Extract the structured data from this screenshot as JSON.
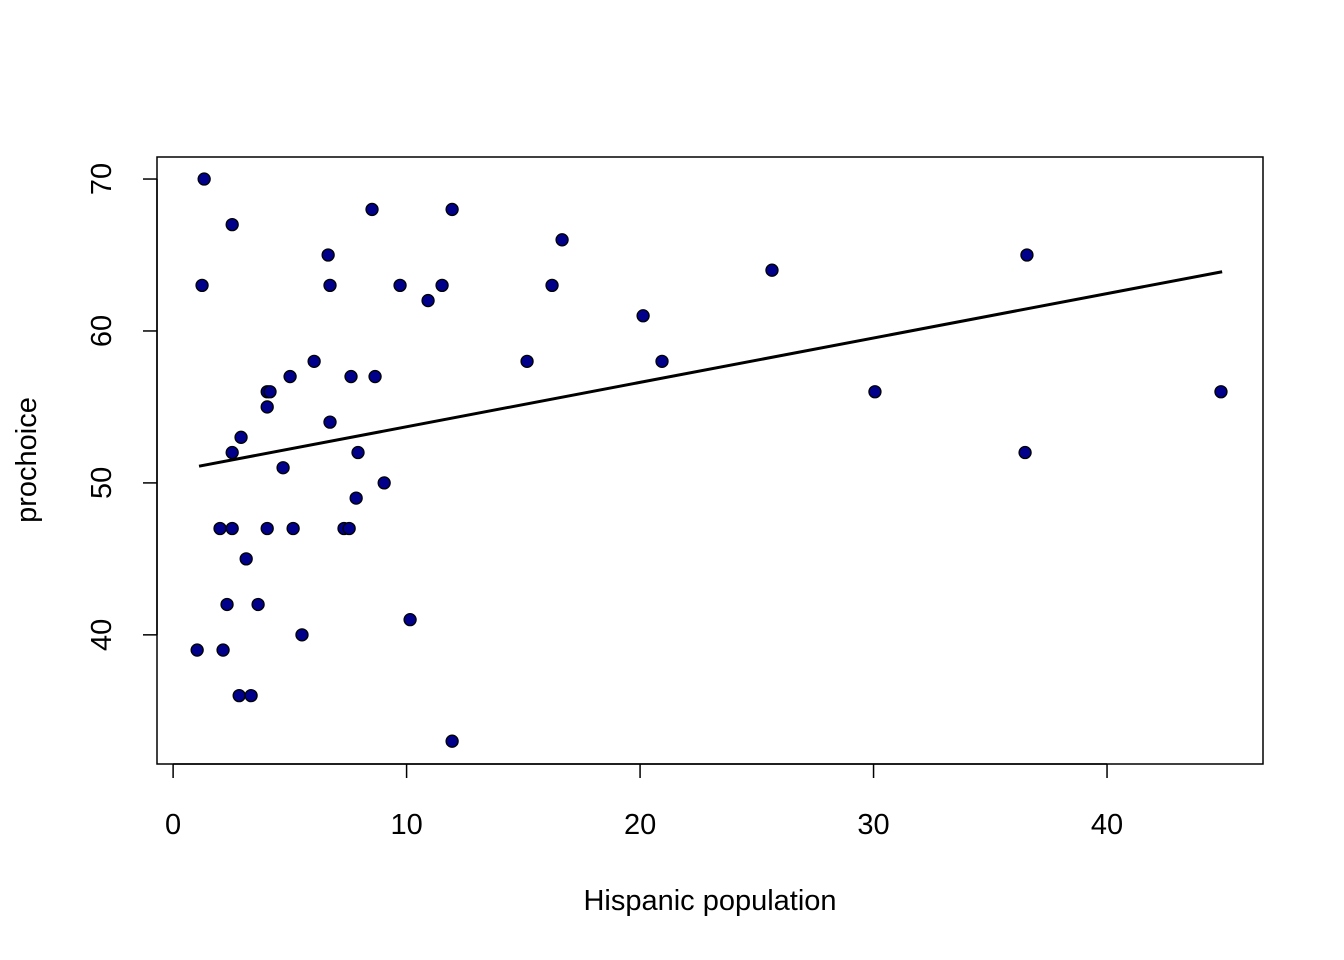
{
  "chart_data": {
    "type": "scatter",
    "title": "",
    "xlabel": "Hispanic population",
    "ylabel": "prochoice",
    "xlim": [
      -0.69,
      46.68
    ],
    "ylim": [
      31.5,
      71.45
    ],
    "xticks": [
      0,
      10,
      20,
      30,
      40
    ],
    "yticks": [
      40,
      50,
      60,
      70
    ],
    "grid": false,
    "point_color": "#00008B",
    "point_edge": "#000000",
    "x": [
      1.33,
      1.24,
      2.53,
      6.64,
      6.72,
      8.52,
      11.95,
      9.72,
      11.52,
      10.92,
      16.66,
      16.23,
      15.16,
      20.13,
      20.94,
      25.65,
      36.57,
      30.06,
      36.49,
      44.88,
      6.04,
      5.01,
      7.62,
      8.65,
      4.03,
      4.15,
      4.03,
      6.72,
      2.91,
      2.53,
      7.92,
      4.71,
      9.04,
      7.84,
      2.01,
      2.53,
      4.03,
      5.14,
      7.32,
      7.54,
      3.13,
      2.31,
      3.64,
      5.52,
      10.15,
      1.03,
      2.14,
      2.83,
      3.34,
      11.95
    ],
    "y": [
      70,
      63,
      67,
      65,
      63,
      68,
      68,
      63,
      63,
      62,
      66,
      63,
      58,
      61,
      58,
      64,
      65,
      56,
      52,
      56,
      58,
      57,
      57,
      57,
      56,
      56,
      55,
      54,
      53,
      52,
      52,
      51,
      50,
      49,
      47,
      47,
      47,
      47,
      47,
      47,
      45,
      42,
      42,
      40,
      41,
      39,
      39,
      36,
      36,
      33
    ],
    "fit_line": {
      "x": [
        1.11,
        44.93
      ],
      "y": [
        51.1,
        63.9
      ],
      "color": "#000000"
    }
  }
}
